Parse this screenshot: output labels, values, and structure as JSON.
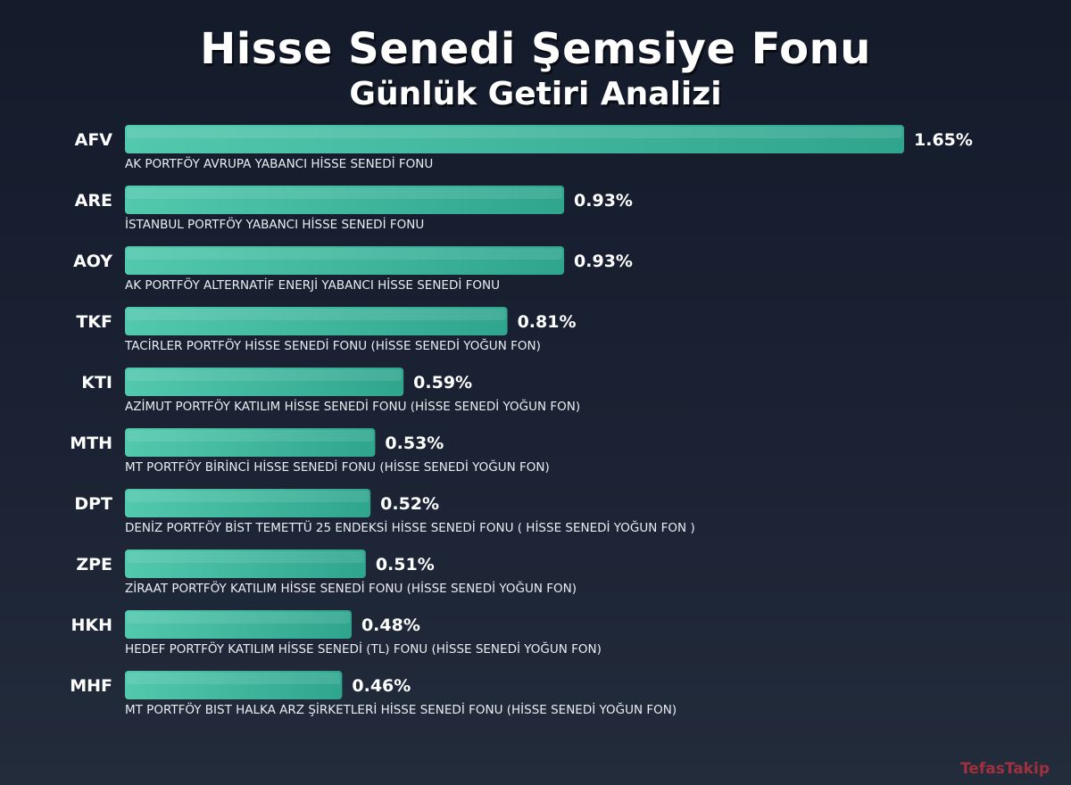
{
  "title": "Hisse Senedi Şemsiye Fonu",
  "subtitle": "Günlük Getiri Analizi",
  "watermark": "TefasTakip",
  "colors": {
    "bar_start": "#52c8ad",
    "bar_end": "#2fa58e",
    "background": "#1a2233",
    "watermark": "#b8323f"
  },
  "chart_data": {
    "type": "bar",
    "orientation": "horizontal",
    "unit": "%",
    "categories": [
      "AFV",
      "ARE",
      "AOY",
      "TKF",
      "KTI",
      "MTH",
      "DPT",
      "ZPE",
      "HKH",
      "MHF"
    ],
    "values": [
      1.65,
      0.93,
      0.93,
      0.81,
      0.59,
      0.53,
      0.52,
      0.51,
      0.48,
      0.46
    ],
    "value_labels": [
      "1.65%",
      "0.93%",
      "0.93%",
      "0.81%",
      "0.59%",
      "0.53%",
      "0.52%",
      "0.51%",
      "0.48%",
      "0.46%"
    ],
    "fund_names": [
      "AK PORTFÖY AVRUPA YABANCI HİSSE SENEDİ FONU",
      "İSTANBUL PORTFÖY YABANCI HİSSE SENEDİ FONU",
      "AK PORTFÖY ALTERNATİF ENERJİ YABANCI HİSSE SENEDİ FONU",
      "TACİRLER PORTFÖY HİSSE SENEDİ FONU (HİSSE SENEDİ YOĞUN FON)",
      "AZİMUT PORTFÖY KATILIM HİSSE SENEDİ FONU (HİSSE SENEDİ YOĞUN FON)",
      "MT PORTFÖY BİRİNCİ HİSSE SENEDİ FONU (HİSSE SENEDİ YOĞUN FON)",
      "DENİZ PORTFÖY BİST TEMETTÜ 25 ENDEKSİ HİSSE SENEDİ FONU ( HİSSE SENEDİ YOĞUN FON )",
      "ZİRAAT PORTFÖY KATILIM HİSSE SENEDİ FONU (HİSSE SENEDİ YOĞUN FON)",
      "HEDEF PORTFÖY KATILIM HİSSE SENEDİ (TL) FONU (HİSSE SENEDİ YOĞUN FON)",
      "MT PORTFÖY BIST HALKA ARZ ŞİRKETLERİ HİSSE SENEDİ FONU (HİSSE SENEDİ YOĞUN FON)"
    ],
    "xlim": [
      0,
      1.65
    ],
    "grid": false,
    "legend": "none"
  }
}
